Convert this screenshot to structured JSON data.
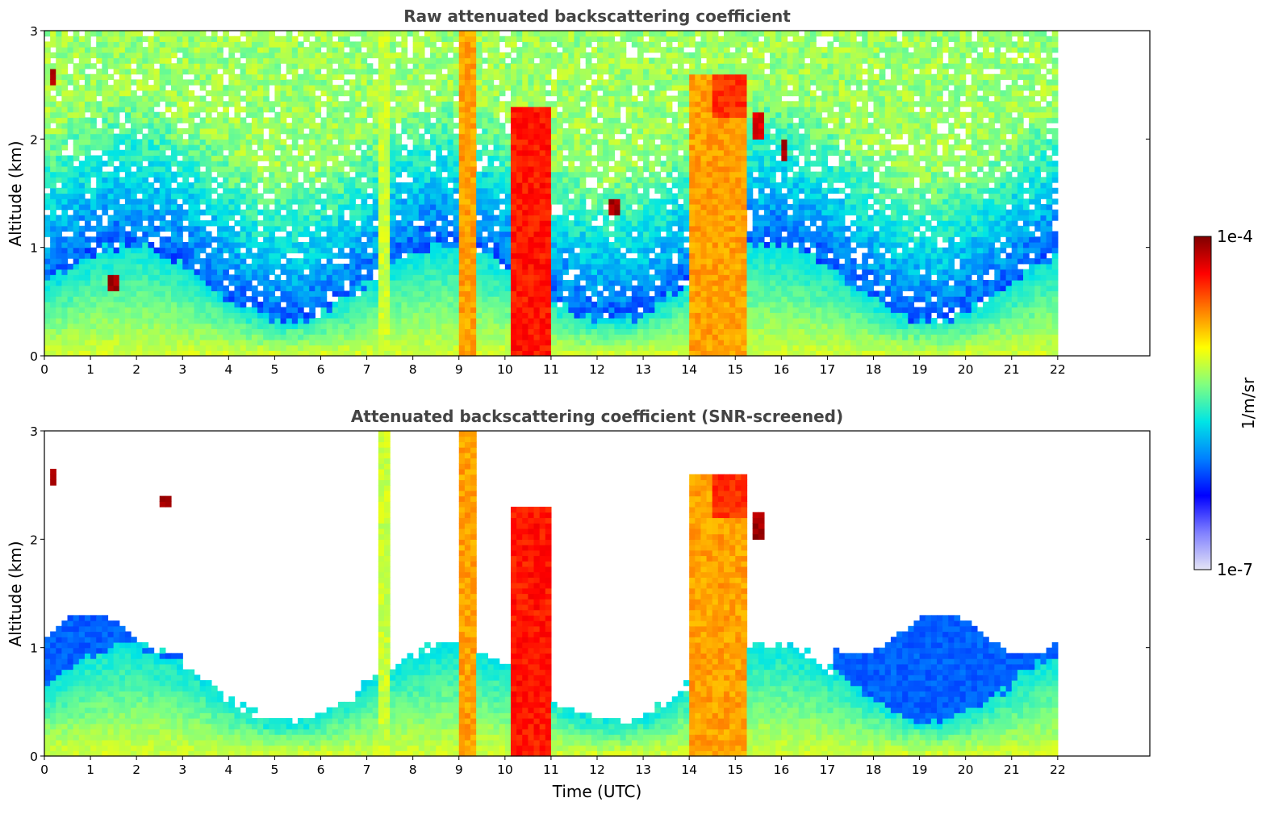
{
  "chart_data": [
    {
      "type": "heatmap",
      "title": "Raw attenuated backscattering coefficient",
      "ylabel": "Altitude (km)",
      "xlabel": "",
      "xlim": [
        0,
        24
      ],
      "ylim": [
        0,
        3
      ],
      "x_ticks": [
        0,
        1,
        2,
        3,
        4,
        5,
        6,
        7,
        8,
        9,
        10,
        11,
        12,
        13,
        14,
        15,
        16,
        17,
        18,
        19,
        20,
        21,
        22
      ],
      "y_ticks": [
        0,
        1,
        2,
        3
      ],
      "data_extent_hours": [
        0,
        22
      ],
      "background_noise": true,
      "features": [
        {
          "kind": "boundary_layer",
          "t": [
            0,
            22
          ],
          "top_km": 0.6,
          "level": 0.5
        },
        {
          "kind": "cloud_column",
          "t": [
            9.0,
            9.35
          ],
          "z": [
            0,
            3.0
          ],
          "level": 0.78
        },
        {
          "kind": "cloud_column",
          "t": [
            10.05,
            11.0
          ],
          "z": [
            0,
            2.3
          ],
          "level": 0.9
        },
        {
          "kind": "cloud_column",
          "t": [
            14.0,
            15.25
          ],
          "z": [
            0,
            2.6
          ],
          "level": 0.78
        },
        {
          "kind": "cloud_column",
          "t": [
            7.15,
            7.45
          ],
          "z": [
            0,
            3.0
          ],
          "level": 0.65
        },
        {
          "kind": "cloud_layer",
          "t": [
            14.4,
            15.2
          ],
          "z": [
            2.2,
            2.6
          ],
          "level": 0.88
        },
        {
          "kind": "cloud_layer",
          "t": [
            15.3,
            15.6
          ],
          "z": [
            2.0,
            2.25
          ],
          "level": 0.95
        },
        {
          "kind": "cloud_layer",
          "t": [
            15.9,
            16.05
          ],
          "z": [
            1.8,
            2.0
          ],
          "level": 1.0
        },
        {
          "kind": "cloud_patch",
          "t": [
            0.05,
            0.15
          ],
          "z": [
            2.5,
            2.65
          ],
          "level": 1.0
        },
        {
          "kind": "cloud_patch",
          "t": [
            1.35,
            1.6
          ],
          "z": [
            0.6,
            0.75
          ],
          "level": 1.0
        },
        {
          "kind": "cloud_patch",
          "t": [
            12.2,
            12.45
          ],
          "z": [
            1.3,
            1.45
          ],
          "level": 1.0
        }
      ]
    },
    {
      "type": "heatmap",
      "title": "Attenuated backscattering coefficient (SNR-screened)",
      "ylabel": "Altitude (km)",
      "xlabel": "Time (UTC)",
      "xlim": [
        0,
        24
      ],
      "ylim": [
        0,
        3
      ],
      "x_ticks": [
        0,
        1,
        2,
        3,
        4,
        5,
        6,
        7,
        8,
        9,
        10,
        11,
        12,
        13,
        14,
        15,
        16,
        17,
        18,
        19,
        20,
        21,
        22
      ],
      "y_ticks": [
        0,
        1,
        2,
        3
      ],
      "data_extent_hours": [
        0,
        22
      ],
      "background_noise": false,
      "features": [
        {
          "kind": "boundary_layer",
          "t": [
            0,
            22
          ],
          "top_km": 0.6,
          "level": 0.5
        },
        {
          "kind": "cloud_column",
          "t": [
            9.0,
            9.35
          ],
          "z": [
            0,
            3.0
          ],
          "level": 0.78
        },
        {
          "kind": "cloud_column",
          "t": [
            10.05,
            11.0
          ],
          "z": [
            0,
            2.3
          ],
          "level": 0.9
        },
        {
          "kind": "cloud_column",
          "t": [
            14.0,
            15.25
          ],
          "z": [
            0,
            2.6
          ],
          "level": 0.78
        },
        {
          "kind": "cloud_column",
          "t": [
            7.15,
            7.45
          ],
          "z": [
            0,
            3.0
          ],
          "level": 0.65
        },
        {
          "kind": "cloud_layer",
          "t": [
            14.4,
            15.2
          ],
          "z": [
            2.2,
            2.6
          ],
          "level": 0.88
        },
        {
          "kind": "cloud_patch",
          "t": [
            0.05,
            0.15
          ],
          "z": [
            2.5,
            2.65
          ],
          "level": 1.0
        },
        {
          "kind": "cloud_patch",
          "t": [
            2.5,
            2.65
          ],
          "z": [
            2.3,
            2.4
          ],
          "level": 1.0
        },
        {
          "kind": "cloud_patch",
          "t": [
            15.3,
            15.6
          ],
          "z": [
            2.0,
            2.25
          ],
          "level": 1.0
        }
      ]
    }
  ],
  "colorbar": {
    "label": "1/m/sr",
    "max_label": "1e-4",
    "min_label": "1e-7",
    "colormap": "jet",
    "stops": [
      "#e4e4f5",
      "#8080ff",
      "#0000ff",
      "#0080ff",
      "#00e5e5",
      "#80ff80",
      "#ffff00",
      "#ff8000",
      "#ff0000",
      "#800000"
    ]
  }
}
